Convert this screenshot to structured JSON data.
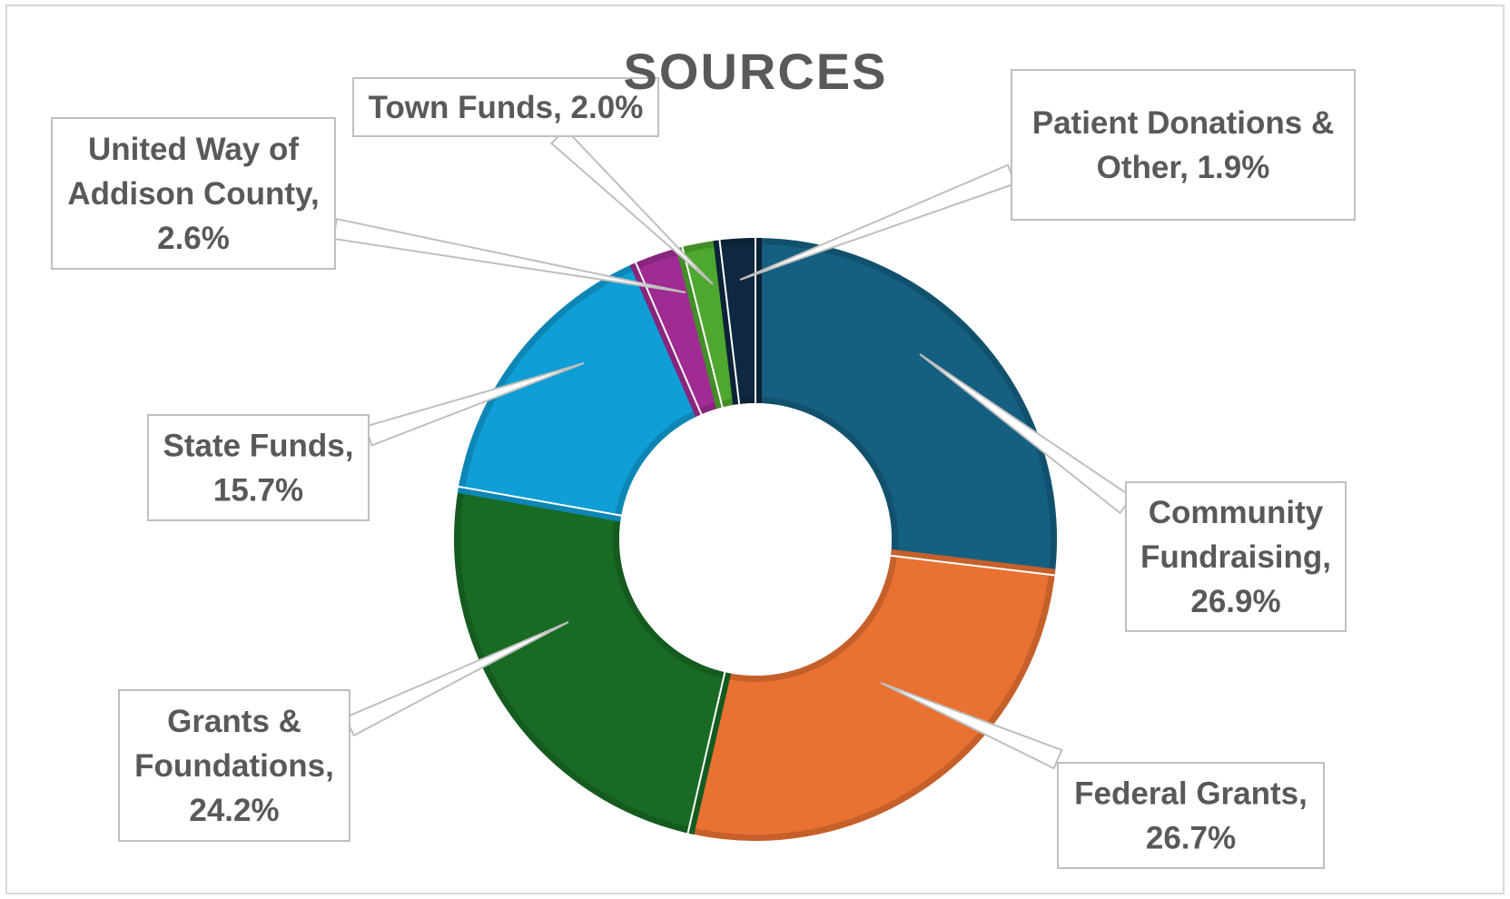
{
  "chart_data": {
    "type": "pie",
    "variant": "doughnut",
    "title": "SOURCES",
    "slices": [
      {
        "label": "Community Fundraising",
        "value": 26.9,
        "data_label": [
          "Community",
          "Fundraising,",
          "26.9%"
        ],
        "color": "#155f80"
      },
      {
        "label": "Federal Grants",
        "value": 26.7,
        "data_label": [
          "Federal Grants,",
          "26.7%"
        ],
        "color": "#e97132"
      },
      {
        "label": "Grants & Foundations",
        "value": 24.2,
        "data_label": [
          "Grants &",
          "Foundations,",
          "24.2%"
        ],
        "color": "#196b24"
      },
      {
        "label": "State Funds",
        "value": 15.7,
        "data_label": [
          "State Funds,",
          "15.7%"
        ],
        "color": "#0f9ed5"
      },
      {
        "label": "United Way of Addison County",
        "value": 2.6,
        "data_label": [
          "United Way of",
          "Addison County,",
          "2.6%"
        ],
        "color": "#a02b93"
      },
      {
        "label": "Town Funds",
        "value": 2.0,
        "data_label": [
          "Town Funds, 2.0%"
        ],
        "color": "#4ea72e"
      },
      {
        "label": "Patient Donations & Other",
        "value": 1.9,
        "data_label": [
          "Patient Donations &",
          "Other, 1.9%"
        ],
        "color": "#0e2841"
      }
    ],
    "legend": "none"
  }
}
